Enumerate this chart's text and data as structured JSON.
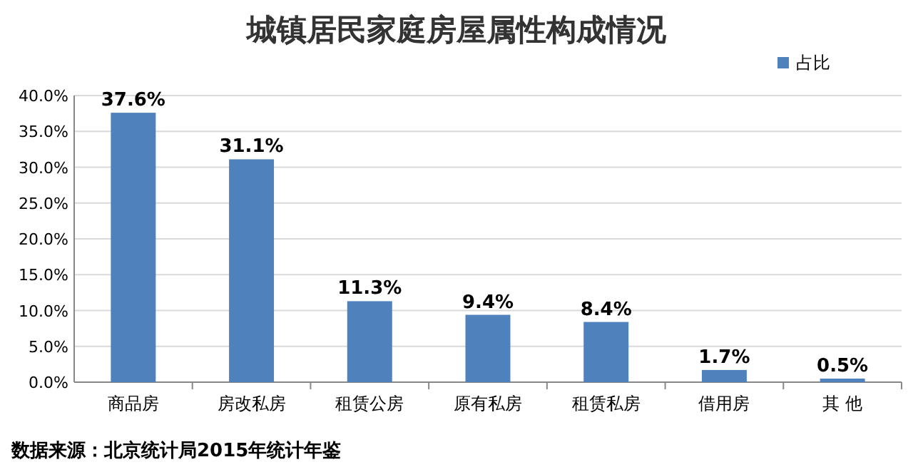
{
  "chart_data": {
    "type": "bar",
    "title": "城镇居民家庭房屋属性构成情况",
    "categories": [
      "商品房",
      "房改私房",
      "租赁公房",
      "原有私房",
      "租赁私房",
      "借用房",
      "其 他"
    ],
    "series": [
      {
        "name": "占比",
        "color": "#4f81bd",
        "values": [
          37.6,
          31.1,
          11.3,
          9.4,
          8.4,
          1.7,
          0.5
        ],
        "value_labels": [
          "37.6%",
          "31.1%",
          "11.3%",
          "9.4%",
          "8.4%",
          "1.7%",
          "0.5%"
        ]
      }
    ],
    "ylim": [
      0,
      40
    ],
    "yticks": [
      {
        "value": 0,
        "label": "0.0%"
      },
      {
        "value": 5,
        "label": "5.0%"
      },
      {
        "value": 10,
        "label": "10.0%"
      },
      {
        "value": 15,
        "label": "15.0%"
      },
      {
        "value": 20,
        "label": "20.0%"
      },
      {
        "value": 25,
        "label": "25.0%"
      },
      {
        "value": 30,
        "label": "30.0%"
      },
      {
        "value": 35,
        "label": "35.0%"
      },
      {
        "value": 40,
        "label": "40.0%"
      }
    ],
    "grid": "y",
    "legend": "top right",
    "annotations": [
      "数据来源：北京统计局2015年统计年鉴"
    ]
  }
}
